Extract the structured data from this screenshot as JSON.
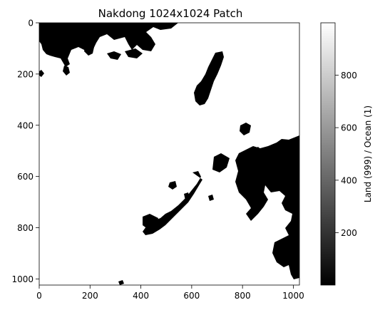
{
  "chart_data": {
    "type": "heatmap",
    "title": "Nakdong 1024x1024 Patch",
    "xlabel": "",
    "ylabel": "",
    "xlim": [
      0,
      1024
    ],
    "ylim": [
      1024,
      0
    ],
    "xticks": [
      0,
      200,
      400,
      600,
      800,
      1000
    ],
    "yticks": [
      0,
      200,
      400,
      600,
      800,
      1000
    ],
    "colormap": "gray",
    "colorbar": {
      "label": "Land (999) / Ocean (1)",
      "range": [
        1,
        999
      ],
      "ticks": [
        200,
        400,
        600,
        800
      ]
    },
    "values": {
      "land": 999,
      "ocean": 1
    },
    "grid": false,
    "colors": {
      "land": "#ffffff",
      "ocean": "#000000"
    }
  }
}
